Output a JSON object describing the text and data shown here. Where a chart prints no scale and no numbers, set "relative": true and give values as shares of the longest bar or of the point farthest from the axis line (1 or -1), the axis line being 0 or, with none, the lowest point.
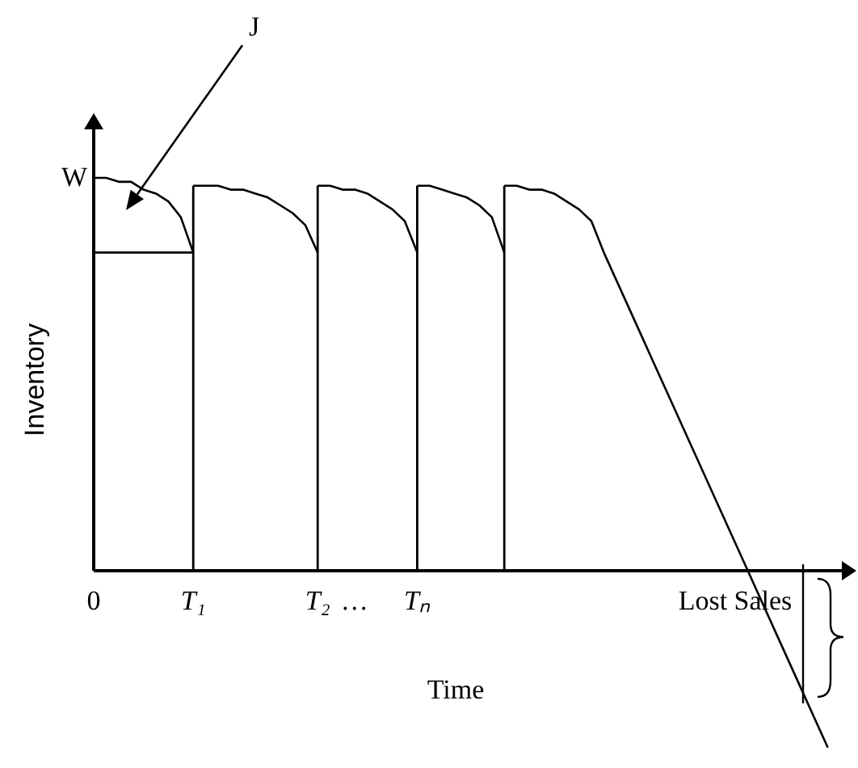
{
  "chart_data": {
    "type": "line",
    "relative": true,
    "xlabel": "Time",
    "ylabel": "Inventory",
    "categories": [
      "0",
      null,
      null,
      null,
      null,
      null,
      null,
      null,
      "T₁",
      null,
      null,
      null,
      null,
      null,
      null,
      null,
      null,
      null,
      "T₂",
      null,
      null,
      "…",
      null,
      null,
      null,
      null,
      "Tₙ",
      null,
      null,
      null,
      null,
      null,
      null,
      null,
      null,
      null,
      null,
      null,
      null,
      null,
      null,
      null,
      null,
      null,
      null,
      null,
      null,
      null,
      null,
      null,
      null,
      null,
      null,
      null,
      null,
      null,
      null,
      null,
      null,
      null,
      null
    ],
    "series": [
      {
        "color": "#000000",
        "values": [
          1,
          1,
          0.99,
          0.99,
          0.97,
          0.96,
          0.94,
          0.9,
          0.81,
          null,
          null,
          null,
          null,
          null,
          null,
          null,
          null,
          null,
          null,
          null,
          null,
          null,
          null,
          null,
          null,
          null,
          null,
          null,
          null,
          null,
          null,
          null,
          null,
          null,
          null,
          null,
          null,
          null,
          null,
          null,
          null,
          null,
          null,
          null,
          null,
          null,
          null,
          null,
          null,
          null,
          null,
          null,
          null,
          null,
          null,
          null,
          null,
          null,
          null,
          null,
          null
        ]
      },
      {
        "color": "#000000",
        "values": [
          0.81,
          0.81,
          0.81,
          0.81,
          0.81,
          0.81,
          0.81,
          0.81,
          0.81,
          null,
          null,
          null,
          null,
          null,
          null,
          null,
          null,
          null,
          null,
          null,
          null,
          null,
          null,
          null,
          null,
          null,
          null,
          null,
          null,
          null,
          null,
          null,
          null,
          null,
          null,
          null,
          null,
          null,
          null,
          null,
          null,
          null,
          null,
          null,
          null,
          null,
          null,
          null,
          null,
          null,
          null,
          null,
          null,
          null,
          null,
          null,
          null,
          null,
          null,
          null,
          null
        ]
      },
      {
        "color": "#000000",
        "values": [
          null,
          null,
          null,
          null,
          null,
          null,
          null,
          null,
          0.98,
          0.98,
          0.98,
          0.97,
          0.97,
          0.96,
          0.95,
          0.93,
          0.91,
          0.88,
          0.81,
          null,
          null,
          null,
          null,
          null,
          null,
          null,
          null,
          null,
          null,
          null,
          null,
          null,
          null,
          null,
          null,
          null,
          null,
          null,
          null,
          null,
          null,
          null,
          null,
          null,
          null,
          null,
          null,
          null,
          null,
          null,
          null,
          null,
          null,
          null,
          null,
          null,
          null,
          null,
          null,
          null,
          null
        ]
      },
      {
        "color": "#000000",
        "values": [
          null,
          null,
          null,
          null,
          null,
          null,
          null,
          null,
          null,
          null,
          null,
          null,
          null,
          null,
          null,
          null,
          null,
          null,
          0.98,
          0.98,
          0.97,
          0.97,
          0.96,
          0.94,
          0.92,
          0.89,
          0.81,
          null,
          null,
          null,
          null,
          null,
          null,
          null,
          null,
          null,
          null,
          null,
          null,
          null,
          null,
          null,
          null,
          null,
          null,
          null,
          null,
          null,
          null,
          null,
          null,
          null,
          null,
          null,
          null,
          null,
          null,
          null,
          null,
          null,
          null
        ]
      },
      {
        "color": "#000000",
        "values": [
          null,
          null,
          null,
          null,
          null,
          null,
          null,
          null,
          null,
          null,
          null,
          null,
          null,
          null,
          null,
          null,
          null,
          null,
          null,
          null,
          null,
          null,
          null,
          null,
          null,
          null,
          0.98,
          0.98,
          0.97,
          0.96,
          0.95,
          0.93,
          0.9,
          0.81,
          null,
          null,
          null,
          null,
          null,
          null,
          null,
          null,
          null,
          null,
          null,
          null,
          null,
          null,
          null,
          null,
          null,
          null,
          null,
          null,
          null,
          null,
          null,
          null,
          null,
          null,
          null
        ]
      },
      {
        "color": "#000000",
        "values": [
          null,
          null,
          null,
          null,
          null,
          null,
          null,
          null,
          null,
          null,
          null,
          null,
          null,
          null,
          null,
          null,
          null,
          null,
          null,
          null,
          null,
          null,
          null,
          null,
          null,
          null,
          null,
          null,
          null,
          null,
          null,
          null,
          null,
          0.98,
          0.98,
          0.97,
          0.97,
          0.96,
          0.94,
          0.92,
          0.89,
          0.81,
          0.74,
          0.67,
          0.6,
          0.53,
          0.46,
          0.39,
          0.32,
          0.25,
          0.18,
          0.11,
          0.04,
          -0.03,
          -0.1,
          -0.17,
          -0.24,
          -0.31,
          -0.38,
          -0.45,
          null
        ]
      },
      {
        "type": "bar",
        "color": "#000000",
        "values": [
          null,
          null,
          null,
          null,
          null,
          null,
          null,
          null,
          0.98,
          null,
          null,
          null,
          null,
          null,
          null,
          null,
          null,
          null,
          0.98,
          null,
          null,
          null,
          null,
          null,
          null,
          null,
          0.98,
          null,
          null,
          null,
          null,
          null,
          null,
          0.98,
          null,
          null,
          null,
          null,
          null,
          null,
          null,
          null,
          null,
          null,
          null,
          null,
          null,
          null,
          null,
          null,
          null,
          null,
          null,
          null,
          null,
          null,
          null,
          null,
          null,
          null,
          null
        ]
      }
    ],
    "annotations": [
      "J",
      {
        "text": "W",
        "x": "0",
        "y": 1
      },
      "Lost Sales"
    ]
  }
}
